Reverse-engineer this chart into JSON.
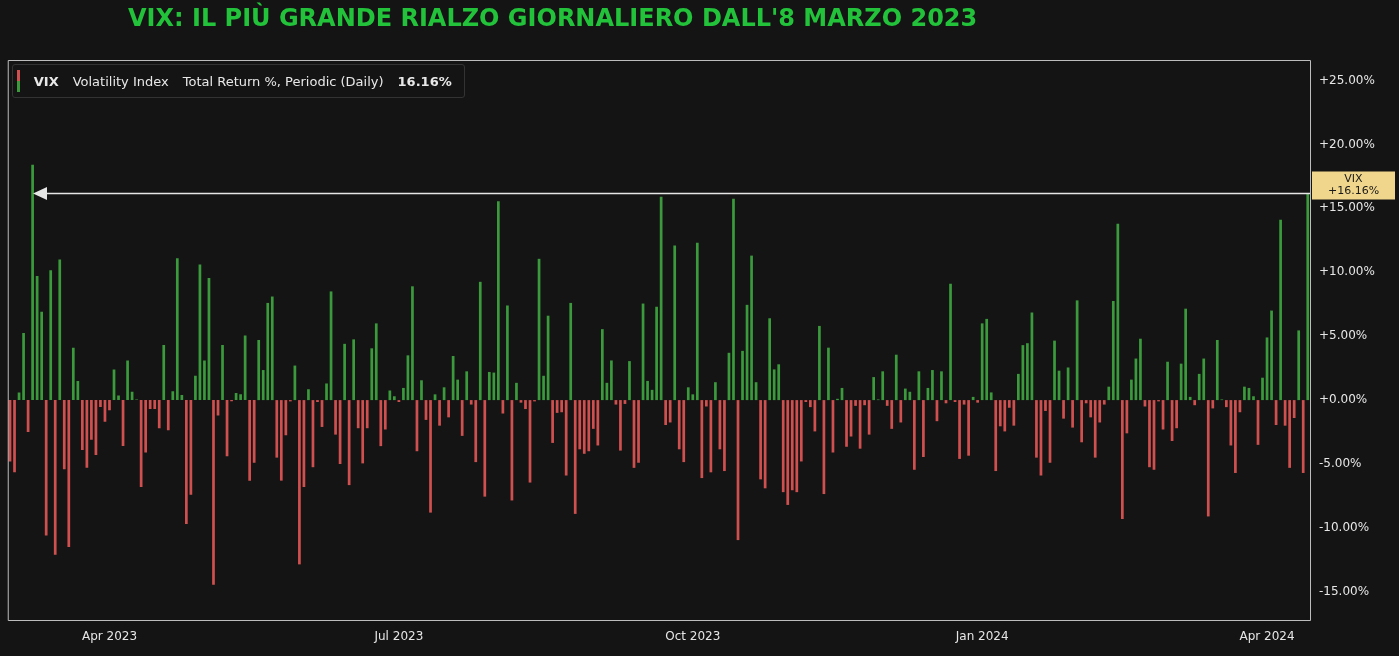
{
  "chart_data": {
    "type": "bar",
    "title": "VIX: IL PIÙ GRANDE RIALZO GIORNALIERO DALL'8 MARZO 2023",
    "annotations": [
      "Volatility Index",
      "Total Return %, Periodic (Daily)",
      "16.16%"
    ],
    "legend": "top left",
    "grid": false,
    "ylim": [
      -17.2,
      26.6
    ],
    "yticks": [
      {
        "value": -15,
        "label": "-15.00%"
      },
      {
        "value": -10,
        "label": "-10.00%"
      },
      {
        "value": -5,
        "label": "-5.00%"
      },
      {
        "value": 0,
        "label": "+0.00%"
      },
      {
        "value": 5,
        "label": "+5.00%"
      },
      {
        "value": 10,
        "label": "+10.00%"
      },
      {
        "value": 15,
        "label": "+15.00%"
      },
      {
        "value": 20,
        "label": "+20.00%"
      },
      {
        "value": 25,
        "label": "+25.00%"
      }
    ],
    "ref_lines": [
      {
        "axis": "y",
        "value": 16.16,
        "label": "VIX\n+16.16%",
        "color": "#e6e6e6"
      }
    ],
    "categories": [
      null,
      null,
      null,
      null,
      null,
      null,
      null,
      null,
      null,
      null,
      null,
      null,
      null,
      null,
      null,
      null,
      null,
      null,
      null,
      null,
      null,
      null,
      "Apr 2023",
      null,
      null,
      null,
      null,
      null,
      null,
      null,
      null,
      null,
      null,
      null,
      null,
      null,
      null,
      null,
      null,
      null,
      null,
      null,
      null,
      null,
      null,
      null,
      null,
      null,
      null,
      null,
      null,
      null,
      null,
      null,
      null,
      null,
      null,
      null,
      null,
      null,
      null,
      null,
      null,
      null,
      null,
      null,
      null,
      null,
      null,
      null,
      null,
      null,
      null,
      null,
      null,
      null,
      null,
      null,
      null,
      null,
      null,
      null,
      null,
      null,
      null,
      null,
      "Jul 2023",
      null,
      null,
      null,
      null,
      null,
      null,
      null,
      null,
      null,
      null,
      null,
      null,
      null,
      null,
      null,
      null,
      null,
      null,
      null,
      null,
      null,
      null,
      null,
      null,
      null,
      null,
      null,
      null,
      null,
      null,
      null,
      null,
      null,
      null,
      null,
      null,
      null,
      null,
      null,
      null,
      null,
      null,
      null,
      null,
      null,
      null,
      null,
      null,
      null,
      null,
      null,
      null,
      null,
      null,
      null,
      null,
      null,
      null,
      null,
      null,
      null,
      null,
      null,
      null,
      "Oct 2023",
      null,
      null,
      null,
      null,
      null,
      null,
      null,
      null,
      null,
      null,
      null,
      null,
      null,
      null,
      null,
      null,
      null,
      null,
      null,
      null,
      null,
      null,
      null,
      null,
      null,
      null,
      null,
      null,
      null,
      null,
      null,
      null,
      null,
      null,
      null,
      null,
      null,
      null,
      null,
      null,
      null,
      null,
      null,
      null,
      null,
      null,
      null,
      null,
      null,
      null,
      null,
      null,
      null,
      null,
      null,
      null,
      null,
      null,
      null,
      null,
      null,
      null,
      null,
      "Jan 2024",
      null,
      null,
      null,
      null,
      null,
      null,
      null,
      null,
      null,
      null,
      null,
      null,
      null,
      null,
      null,
      null,
      null,
      null,
      null,
      null,
      null,
      null,
      null,
      null,
      null,
      null,
      null,
      null,
      null,
      null,
      null,
      null,
      null,
      null,
      null,
      null,
      null,
      null,
      null,
      null,
      null,
      null,
      null,
      null,
      null,
      null,
      null,
      null,
      null,
      null,
      null,
      null,
      null,
      null,
      null,
      null,
      null,
      null,
      null,
      null,
      null,
      null,
      "Apr 2024",
      null,
      null,
      null,
      null,
      null,
      null,
      null,
      null,
      null
    ],
    "series": [
      {
        "name": "VIX",
        "values": [
          -4.8,
          -5.65,
          0.6,
          5.25,
          -2.5,
          18.4,
          9.7,
          6.9,
          -10.6,
          10.15,
          -12.1,
          11.0,
          -5.4,
          -11.5,
          4.1,
          1.5,
          -3.9,
          -5.3,
          -3.1,
          -4.3,
          -0.55,
          -1.7,
          -0.8,
          2.4,
          0.35,
          -3.6,
          3.1,
          0.65,
          0.05,
          -6.8,
          -4.1,
          -0.7,
          -0.7,
          -2.2,
          4.3,
          -2.35,
          0.7,
          11.1,
          0.4,
          -9.7,
          -7.4,
          1.9,
          10.6,
          3.1,
          9.55,
          -14.45,
          -1.2,
          4.3,
          -4.4,
          -0.1,
          0.55,
          0.45,
          5.05,
          -6.3,
          -4.9,
          4.7,
          2.35,
          7.6,
          8.1,
          -4.5,
          -6.3,
          -2.75,
          -0.1,
          2.7,
          -12.85,
          -6.8,
          0.85,
          -5.25,
          -0.15,
          -2.1,
          1.3,
          8.5,
          -2.7,
          -5.0,
          4.4,
          -6.65,
          4.75,
          -2.2,
          -4.95,
          -2.2,
          4.05,
          6.0,
          -3.6,
          -2.3,
          0.75,
          0.3,
          -0.15,
          0.95,
          3.5,
          8.9,
          -4.0,
          1.55,
          -1.55,
          -8.8,
          0.45,
          -2.0,
          1.0,
          -1.35,
          3.45,
          1.6,
          -2.8,
          2.25,
          -0.35,
          -4.85,
          9.25,
          -7.55,
          2.2,
          2.15,
          15.55,
          -1.05,
          7.4,
          -7.85,
          1.35,
          -0.2,
          -0.7,
          -6.45,
          -0.1,
          11.05,
          1.9,
          6.6,
          -3.35,
          -1.0,
          -0.95,
          -5.9,
          7.6,
          -8.9,
          -3.85,
          -4.2,
          -4.0,
          -2.25,
          -3.55,
          5.55,
          1.35,
          3.1,
          -0.35,
          -3.95,
          -0.3,
          3.05,
          -5.3,
          -4.9,
          7.55,
          1.5,
          0.8,
          7.3,
          15.9,
          -1.95,
          -1.75,
          12.1,
          -3.85,
          -4.85,
          1.0,
          0.45,
          12.3,
          -6.1,
          -0.5,
          -5.65,
          1.4,
          -3.85,
          -5.55,
          3.7,
          15.75,
          -10.95,
          3.85,
          7.45,
          11.3,
          1.4,
          -6.2,
          -6.9,
          6.4,
          2.4,
          2.8,
          -7.2,
          -8.2,
          -7.05,
          -7.2,
          -4.8,
          -0.15,
          -0.55,
          -2.45,
          5.8,
          -7.35,
          4.1,
          -4.1,
          0.1,
          0.95,
          -3.65,
          -2.85,
          -0.45,
          -3.8,
          -0.4,
          -2.7,
          1.8,
          0.05,
          2.25,
          -0.45,
          -2.25,
          3.55,
          -1.75,
          0.9,
          0.65,
          -5.45,
          2.25,
          -4.45,
          0.95,
          2.35,
          -1.65,
          2.25,
          -0.25,
          9.1,
          -0.15,
          -4.6,
          -0.35,
          -4.35,
          0.25,
          -0.2,
          6.0,
          6.35,
          0.6,
          -5.55,
          -2.05,
          -2.45,
          -0.6,
          -2.0,
          2.05,
          4.3,
          4.45,
          6.85,
          -4.5,
          -5.9,
          -0.85,
          -4.9,
          4.65,
          2.3,
          -1.45,
          2.55,
          -2.15,
          7.8,
          -3.3,
          -0.25,
          -1.35,
          -4.5,
          -1.75,
          -0.35,
          1.05,
          7.75,
          13.8,
          -9.3,
          -2.6,
          1.6,
          3.25,
          4.8,
          -0.5,
          -5.25,
          -5.45,
          -0.1,
          -2.3,
          3.0,
          -3.2,
          -2.2,
          2.85,
          7.15,
          0.25,
          -0.4,
          2.05,
          3.25,
          -9.1,
          -0.65,
          4.7,
          0.05,
          -0.55,
          -3.55,
          -5.7,
          -0.95,
          1.05,
          0.95,
          0.3,
          -3.5,
          1.75,
          4.9,
          7.0,
          -1.95,
          14.1,
          -2.0,
          -5.3,
          -1.4,
          5.45,
          -5.7,
          16.16
        ],
        "colors": [
          "#d0504f",
          "#d0504f",
          "#3a9a3c",
          "#3a9a3c",
          "#d0504f",
          "#3a9a3c",
          "#3a9a3c",
          "#3a9a3c",
          "#d0504f",
          "#3a9a3c",
          "#d0504f",
          "#3a9a3c",
          "#d0504f",
          "#d0504f",
          "#3a9a3c",
          "#3a9a3c",
          "#d0504f",
          "#d0504f",
          "#d0504f",
          "#d0504f",
          "#d0504f",
          "#d0504f",
          "#d0504f",
          "#3a9a3c",
          "#3a9a3c",
          "#d0504f",
          "#3a9a3c",
          "#3a9a3c",
          "#3a9a3c",
          "#d0504f",
          "#d0504f",
          "#d0504f",
          "#d0504f",
          "#d0504f",
          "#3a9a3c",
          "#d0504f",
          "#3a9a3c",
          "#3a9a3c",
          "#3a9a3c",
          "#d0504f",
          "#d0504f",
          "#3a9a3c",
          "#3a9a3c",
          "#3a9a3c",
          "#3a9a3c",
          "#d0504f",
          "#d0504f",
          "#3a9a3c",
          "#d0504f",
          "#d0504f",
          "#3a9a3c",
          "#3a9a3c",
          "#3a9a3c",
          "#d0504f",
          "#d0504f",
          "#3a9a3c",
          "#3a9a3c",
          "#3a9a3c",
          "#3a9a3c",
          "#d0504f",
          "#d0504f",
          "#d0504f",
          "#d0504f",
          "#3a9a3c",
          "#d0504f",
          "#d0504f",
          "#3a9a3c",
          "#d0504f",
          "#d0504f",
          "#d0504f",
          "#3a9a3c",
          "#3a9a3c",
          "#d0504f",
          "#d0504f",
          "#3a9a3c",
          "#d0504f",
          "#3a9a3c",
          "#d0504f",
          "#d0504f",
          "#d0504f",
          "#3a9a3c",
          "#3a9a3c",
          "#d0504f",
          "#d0504f",
          "#3a9a3c",
          "#3a9a3c",
          "#d0504f",
          "#3a9a3c",
          "#3a9a3c",
          "#3a9a3c",
          "#d0504f",
          "#3a9a3c",
          "#d0504f",
          "#d0504f",
          "#3a9a3c",
          "#d0504f",
          "#3a9a3c",
          "#d0504f",
          "#3a9a3c",
          "#3a9a3c",
          "#d0504f",
          "#3a9a3c",
          "#d0504f",
          "#d0504f",
          "#3a9a3c",
          "#d0504f",
          "#3a9a3c",
          "#3a9a3c",
          "#3a9a3c",
          "#d0504f",
          "#3a9a3c",
          "#d0504f",
          "#3a9a3c",
          "#d0504f",
          "#d0504f",
          "#d0504f",
          "#d0504f",
          "#3a9a3c",
          "#3a9a3c",
          "#3a9a3c",
          "#d0504f",
          "#d0504f",
          "#d0504f",
          "#d0504f",
          "#3a9a3c",
          "#d0504f",
          "#d0504f",
          "#d0504f",
          "#d0504f",
          "#d0504f",
          "#d0504f",
          "#3a9a3c",
          "#3a9a3c",
          "#3a9a3c",
          "#d0504f",
          "#d0504f",
          "#d0504f",
          "#3a9a3c",
          "#d0504f",
          "#d0504f",
          "#3a9a3c",
          "#3a9a3c",
          "#3a9a3c",
          "#3a9a3c",
          "#3a9a3c",
          "#d0504f",
          "#d0504f",
          "#3a9a3c",
          "#d0504f",
          "#d0504f",
          "#3a9a3c",
          "#3a9a3c",
          "#3a9a3c",
          "#d0504f",
          "#d0504f",
          "#d0504f",
          "#3a9a3c",
          "#d0504f",
          "#d0504f",
          "#3a9a3c",
          "#3a9a3c",
          "#d0504f",
          "#3a9a3c",
          "#3a9a3c",
          "#3a9a3c",
          "#3a9a3c",
          "#d0504f",
          "#d0504f",
          "#3a9a3c",
          "#3a9a3c",
          "#3a9a3c",
          "#d0504f",
          "#d0504f",
          "#d0504f",
          "#d0504f",
          "#d0504f",
          "#d0504f",
          "#d0504f",
          "#d0504f",
          "#3a9a3c",
          "#d0504f",
          "#3a9a3c",
          "#d0504f",
          "#3a9a3c",
          "#3a9a3c",
          "#d0504f",
          "#d0504f",
          "#d0504f",
          "#d0504f",
          "#d0504f",
          "#d0504f",
          "#3a9a3c",
          "#3a9a3c",
          "#3a9a3c",
          "#d0504f",
          "#d0504f",
          "#3a9a3c",
          "#d0504f",
          "#3a9a3c",
          "#3a9a3c",
          "#d0504f",
          "#3a9a3c",
          "#d0504f",
          "#3a9a3c",
          "#3a9a3c",
          "#d0504f",
          "#3a9a3c",
          "#d0504f",
          "#3a9a3c",
          "#d0504f",
          "#d0504f",
          "#d0504f",
          "#d0504f",
          "#3a9a3c",
          "#d0504f",
          "#3a9a3c",
          "#3a9a3c",
          "#3a9a3c",
          "#d0504f",
          "#d0504f",
          "#d0504f",
          "#d0504f",
          "#d0504f",
          "#3a9a3c",
          "#3a9a3c",
          "#3a9a3c",
          "#3a9a3c",
          "#d0504f",
          "#d0504f",
          "#d0504f",
          "#d0504f",
          "#3a9a3c",
          "#3a9a3c",
          "#d0504f",
          "#3a9a3c",
          "#d0504f",
          "#3a9a3c",
          "#d0504f",
          "#d0504f",
          "#d0504f",
          "#d0504f",
          "#d0504f",
          "#d0504f",
          "#3a9a3c",
          "#3a9a3c",
          "#3a9a3c",
          "#d0504f",
          "#d0504f",
          "#3a9a3c",
          "#3a9a3c",
          "#3a9a3c",
          "#d0504f",
          "#d0504f",
          "#d0504f",
          "#d0504f",
          "#d0504f",
          "#3a9a3c",
          "#d0504f",
          "#d0504f",
          "#3a9a3c",
          "#3a9a3c",
          "#3a9a3c",
          "#d0504f",
          "#3a9a3c",
          "#3a9a3c",
          "#d0504f",
          "#d0504f",
          "#3a9a3c",
          "#3a9a3c",
          "#d0504f",
          "#d0504f",
          "#d0504f",
          "#d0504f",
          "#3a9a3c",
          "#3a9a3c",
          "#3a9a3c",
          "#d0504f",
          "#3a9a3c",
          "#3a9a3c",
          "#3a9a3c",
          "#d0504f",
          "#3a9a3c",
          "#d0504f",
          "#d0504f",
          "#d0504f",
          "#3a9a3c",
          "#d0504f",
          "#3a9a3c"
        ]
      }
    ]
  }
}
